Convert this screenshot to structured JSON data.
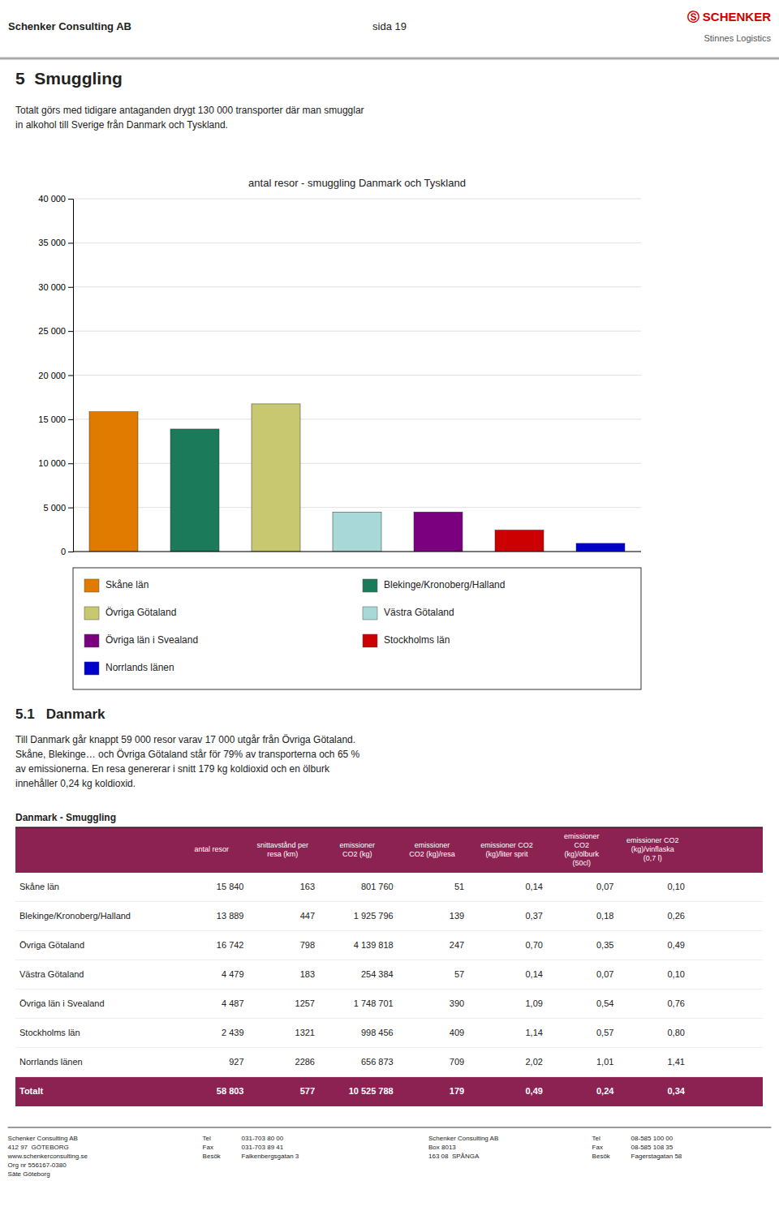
{
  "chart_data": {
    "type": "bar",
    "title": "antal resor - smuggling Danmark och Tyskland",
    "categories": [
      "Skåne län",
      "Blekinge/Kronoberg/Halland",
      "Övriga Götaland",
      "Västra Götaland",
      "Övriga län i Svealand",
      "Stockholms län",
      "Norrlands länen"
    ],
    "values": [
      15840,
      13889,
      16742,
      4479,
      4487,
      2439,
      927
    ],
    "colors": [
      "#E07B00",
      "#1B7A5A",
      "#C8C870",
      "#A8D8D8",
      "#7B0080",
      "#CC0000",
      "#0000CC"
    ],
    "ylim": [
      0,
      40000
    ],
    "yticks": [
      0,
      {
        "value": 5000,
        "label": "5 000"
      },
      {
        "value": 10000,
        "label": "10 000"
      },
      {
        "value": 15000,
        "label": "15 000"
      },
      {
        "value": 20000,
        "label": "20 000"
      },
      {
        "value": 25000,
        "label": "25 000"
      },
      {
        "value": 30000,
        "label": "30 000"
      },
      {
        "value": 35000,
        "label": "35 000"
      },
      {
        "value": 40000,
        "label": "40 000"
      }
    ],
    "grid": true,
    "tick_labels": "y",
    "legend": "bottom"
  },
  "page": {
    "header_company": "Schenker Consulting AB",
    "page_number": "sida 19",
    "logo": {
      "text": "Ⓢ SCHENKER",
      "color": "#CC0000"
    },
    "logo_subtitle": "Stinnes Logistics",
    "title": "5  Smuggling",
    "intro_text": "Totalt görs med tidigare antaganden drygt 130 000 transporter där man smugglar\nin alkohol till Sverige från Danmark och Tyskland.",
    "section_title": "5.1   Danmark",
    "section_text1": "Till Danmark går knappt 59 000 resor varav 17 000 utgår från Övriga Götaland.",
    "section_text2": "Skåne, Blekinge… och Övriga Götaland står för 79% av transporterna och 65 %\nav emissionerna. En resa genererar i snitt 179 kg koldioxid och en ölburk\ninnehåller 0,24 kg koldioxid."
  },
  "table": {
    "title": "Danmark - Smuggling",
    "color": "#8B2252",
    "columns": [
      "antal resor",
      "snittavstånd per\nresa (km)",
      "emissioner\nCO2 (kg)",
      "emissioner\nCO2 (kg)/resa",
      "emissioner CO2\n(kg)/liter sprit",
      "emissioner\nCO2\n(kg)/ölburk\n(50cl)",
      "emissioner CO2\n(kg)/vinflaska\n(0,7 l)"
    ],
    "rows": [
      [
        "Skåne län",
        "15 840",
        "163",
        "801 760",
        "51",
        "0,14",
        "0,07",
        "0,10"
      ],
      [
        "Blekinge/Kronoberg/Halland",
        "13 889",
        "447",
        "1 925 796",
        "139",
        "0,37",
        "0,18",
        "0,26"
      ],
      [
        "Övriga Götaland",
        "16 742",
        "798",
        "4 139 818",
        "247",
        "0,70",
        "0,35",
        "0,49"
      ],
      [
        "Västra Götaland",
        "4 479",
        "183",
        "254 384",
        "57",
        "0,14",
        "0,07",
        "0,10"
      ],
      [
        "Övriga län i Svealand",
        "4 487",
        "1257",
        "1 748 701",
        "390",
        "1,09",
        "0,54",
        "0,76"
      ],
      [
        "Stockholms län",
        "2 439",
        "1321",
        "998 456",
        "409",
        "1,14",
        "0,57",
        "0,80"
      ],
      [
        "Norrlands länen",
        "927",
        "2286",
        "656 873",
        "709",
        "2,02",
        "1,01",
        "1,41"
      ]
    ],
    "total": [
      "Totalt",
      "58 803",
      "577",
      "10 525 788",
      "179",
      "0,49",
      "0,24",
      "0,34"
    ]
  },
  "footer": [
    "Schenker Consulting AB\n412 97  GÖTEBORG\nwww.schenkerconsulting.se\nOrg nr 556167-0380\nSäte Göteborg",
    "Tel\nFax\nBesök",
    "031-703 80 00\n031-703 89 41\nFalkenbergsgatan 3",
    "Schenker Consulting AB\nBox 8013\n163 08  SPÅNGA",
    "Tel\nFax\nBesök",
    "08-585 100 00\n08-585 108 35\nFagerstagatan 58"
  ]
}
